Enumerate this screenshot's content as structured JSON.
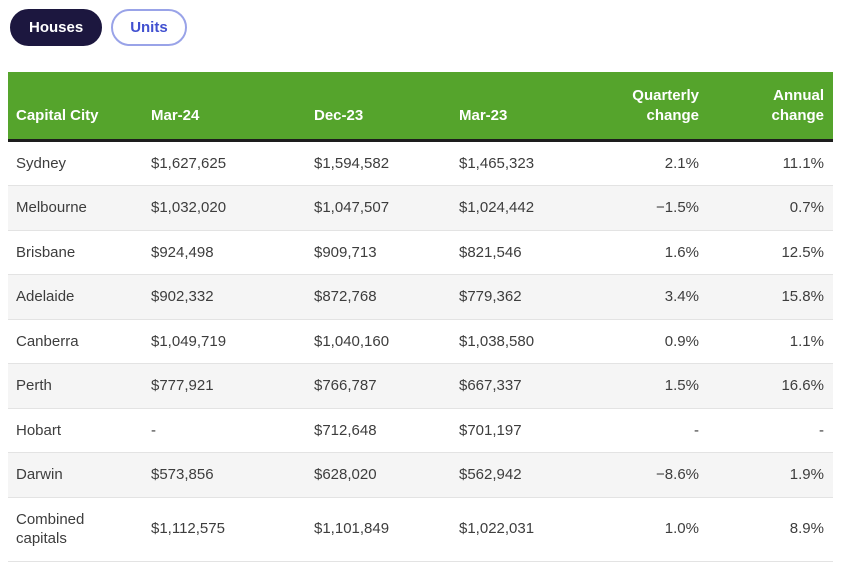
{
  "tabs": [
    {
      "label": "Houses",
      "active": true
    },
    {
      "label": "Units",
      "active": false
    }
  ],
  "colors": {
    "header_green": "#55a42c",
    "active_pill_navy": "#1c173f",
    "inactive_pill_blue": "#4150d0",
    "header_divider_dark": "#1d1d1d",
    "zebra_stripe": "#f5f5f5"
  },
  "table": {
    "columns": [
      {
        "key": "city",
        "label": "Capital City",
        "align": "left"
      },
      {
        "key": "mar24",
        "label": "Mar-24",
        "align": "left"
      },
      {
        "key": "dec23",
        "label": "Dec-23",
        "align": "left"
      },
      {
        "key": "mar23",
        "label": "Mar-23",
        "align": "left"
      },
      {
        "key": "qchange",
        "label": "Quarterly\nchange",
        "align": "right"
      },
      {
        "key": "achange",
        "label": "Annual\nchange",
        "align": "right"
      }
    ],
    "rows": [
      {
        "city": "Sydney",
        "mar24": "$1,627,625",
        "dec23": "$1,594,582",
        "mar23": "$1,465,323",
        "qchange": "2.1%",
        "achange": "11.1%"
      },
      {
        "city": "Melbourne",
        "mar24": "$1,032,020",
        "dec23": "$1,047,507",
        "mar23": "$1,024,442",
        "qchange": "−1.5%",
        "achange": "0.7%"
      },
      {
        "city": "Brisbane",
        "mar24": "$924,498",
        "dec23": "$909,713",
        "mar23": "$821,546",
        "qchange": "1.6%",
        "achange": "12.5%"
      },
      {
        "city": "Adelaide",
        "mar24": "$902,332",
        "dec23": "$872,768",
        "mar23": "$779,362",
        "qchange": "3.4%",
        "achange": "15.8%"
      },
      {
        "city": "Canberra",
        "mar24": "$1,049,719",
        "dec23": "$1,040,160",
        "mar23": "$1,038,580",
        "qchange": "0.9%",
        "achange": "1.1%"
      },
      {
        "city": "Perth",
        "mar24": "$777,921",
        "dec23": "$766,787",
        "mar23": "$667,337",
        "qchange": "1.5%",
        "achange": "16.6%"
      },
      {
        "city": "Hobart",
        "mar24": "-",
        "dec23": "$712,648",
        "mar23": "$701,197",
        "qchange": "-",
        "achange": "-"
      },
      {
        "city": "Darwin",
        "mar24": "$573,856",
        "dec23": "$628,020",
        "mar23": "$562,942",
        "qchange": "−8.6%",
        "achange": "1.9%"
      },
      {
        "city": "Combined capitals",
        "mar24": "$1,112,575",
        "dec23": "$1,101,849",
        "mar23": "$1,022,031",
        "qchange": "1.0%",
        "achange": "8.9%"
      }
    ]
  }
}
